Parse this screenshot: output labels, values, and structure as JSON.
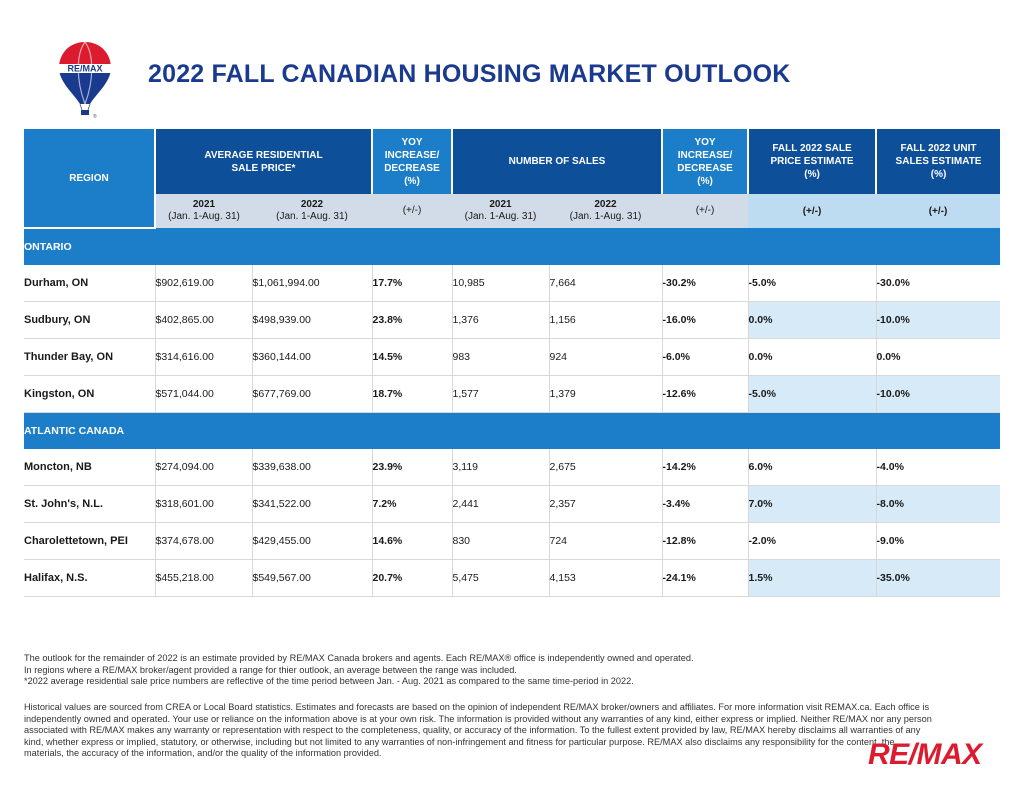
{
  "title": "2022 FALL CANADIAN HOUSING MARKET OUTLOOK",
  "logo": {
    "text": "RE/MAX",
    "mark": "®"
  },
  "colors": {
    "dark_blue": "#0e4f9a",
    "bright_blue": "#1c7ec8",
    "light_blue": "#d6eaf7",
    "title_blue": "#1a3a8f",
    "brand_red": "#dc1c2e"
  },
  "table": {
    "headers": {
      "region": "REGION",
      "avg_price": "AVERAGE RESIDENTIAL SALE PRICE*",
      "yoy_1": "YOY INCREASE/ DECREASE (%)",
      "num_sales": "NUMBER OF SALES",
      "yoy_2": "YOY INCREASE/ DECREASE (%)",
      "fall_price": "FALL 2022 SALE PRICE ESTIMATE (%)",
      "fall_units": "FALL 2022 UNIT SALES ESTIMATE (%)"
    },
    "sub": {
      "y2021": "2021",
      "y2022": "2022",
      "period": "(Jan. 1-Aug. 31)",
      "pm": "(+/-)"
    },
    "sections": [
      {
        "name": "ONTARIO",
        "rows": [
          [
            "Durham, ON",
            "$902,619.00",
            "$1,061,994.00",
            "17.7%",
            "10,985",
            "7,664",
            "-30.2%",
            "-5.0%",
            "-30.0%"
          ],
          [
            "Sudbury, ON",
            "$402,865.00",
            "$498,939.00",
            "23.8%",
            "1,376",
            "1,156",
            "-16.0%",
            "0.0%",
            "-10.0%"
          ],
          [
            "Thunder Bay, ON",
            "$314,616.00",
            "$360,144.00",
            "14.5%",
            "983",
            "924",
            "-6.0%",
            "0.0%",
            "0.0%"
          ],
          [
            "Kingston, ON",
            "$571,044.00",
            "$677,769.00",
            "18.7%",
            "1,577",
            "1,379",
            "-12.6%",
            "-5.0%",
            "-10.0%"
          ]
        ]
      },
      {
        "name": "ATLANTIC CANADA",
        "rows": [
          [
            "Moncton, NB",
            "$274,094.00",
            "$339,638.00",
            "23.9%",
            "3,119",
            "2,675",
            "-14.2%",
            "6.0%",
            "-4.0%"
          ],
          [
            "St. John's, N.L.",
            "$318,601.00",
            "$341,522.00",
            "7.2%",
            "2,441",
            "2,357",
            "-3.4%",
            "7.0%",
            "-8.0%"
          ],
          [
            "Charolettetown, PEI",
            "$374,678.00",
            "$429,455.00",
            "14.6%",
            "830",
            "724",
            "-12.8%",
            "-2.0%",
            "-9.0%"
          ],
          [
            "Halifax, N.S.",
            "$455,218.00",
            "$549,567.00",
            "20.7%",
            "5,475",
            "4,153",
            "-24.1%",
            "1.5%",
            "-35.0%"
          ]
        ]
      }
    ]
  },
  "footnotes": [
    "The outlook for the remainder of 2022 is an estimate provided by RE/MAX Canada brokers and agents. Each RE/MAX® office is independently owned and operated.",
    "In regions where a RE/MAX broker/agent provided a range for thier outlook, an average between the range was included.",
    "*2022 average residential sale price numbers are reflective of the time period between Jan. - Aug. 2021 as compared to the same time-period in 2022."
  ],
  "disclaimer": "Historical values are sourced from CREA or Local Board statistics. Estimates and forecasts are based on the opinion of independent RE/MAX broker/owners and affiliates. For more information visit REMAX.ca. Each office is independently owned and operated. Your use or reliance on the information above is at your own risk. The information is provided without any warranties of any kind, either express or implied. Neither RE/MAX nor any person associated with RE/MAX makes any warranty or representation with respect to the completeness, quality, or accuracy of the information. To the fullest extent provided by law, RE/MAX hereby disclaims all warranties of any kind, whether express or implied, statutory, or otherwise, including but not limited to any warranties of non-infringement and fitness for particular purpose. RE/MAX also disclaims any responsibility for the content, the materials, the accuracy of the information, and/or the quality of the information provided.",
  "brand": "RE/MAX"
}
